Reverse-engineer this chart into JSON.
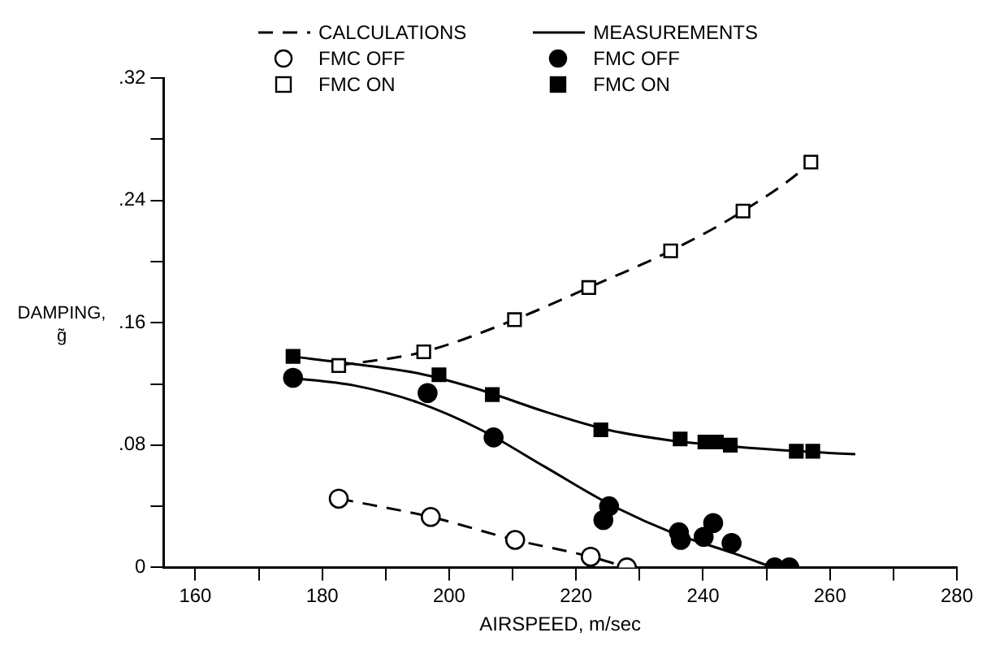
{
  "chart_data": {
    "type": "scatter",
    "xlabel": "AIRSPEED, m/sec",
    "ylabel": "DAMPING, g̃",
    "xlim": [
      155,
      280
    ],
    "xticks": [
      160,
      {
        "value": 170,
        "label": null
      },
      180,
      {
        "value": 190,
        "label": null
      },
      200,
      {
        "value": 210,
        "label": null
      },
      220,
      {
        "value": 230,
        "label": null
      },
      240,
      {
        "value": 250,
        "label": null
      },
      260,
      {
        "value": 270,
        "label": null
      },
      280
    ],
    "ylim": [
      0,
      0.32
    ],
    "yticks": [
      {
        "value": 0,
        "label": "0"
      },
      {
        "value": 0.04,
        "label": null
      },
      {
        "value": 0.08,
        "label": ".08"
      },
      {
        "value": 0.12,
        "label": null
      },
      {
        "value": 0.16,
        "label": ".16"
      },
      {
        "value": 0.2,
        "label": null
      },
      {
        "value": 0.24,
        "label": ".24"
      },
      {
        "value": 0.28,
        "label": null
      },
      {
        "value": 0.32,
        "label": ".32"
      }
    ],
    "grid": false,
    "legend": "top",
    "series": [
      {
        "name": "CALCULATIONS",
        "type": "line",
        "line_style": "dashed",
        "marker": "none",
        "color": "#000000",
        "x": [
          182.6,
          197.1,
          210.4,
          222.3,
          228
        ],
        "values": [
          0.045,
          0.033,
          0.018,
          0.007,
          0
        ]
      },
      {
        "type": "line",
        "line_style": "dashed",
        "marker": "none",
        "color": "#000000",
        "x": [
          182.6,
          196,
          210.3,
          222,
          234.9,
          246.3,
          257,
          258.5
        ],
        "values": [
          0.132,
          0.141,
          0.162,
          0.183,
          0.207,
          0.233,
          0.265,
          0.272
        ]
      },
      {
        "name": "FMC OFF",
        "marker": "circle",
        "color": "#ffffff",
        "x": [
          182.6,
          197.1,
          210.4,
          222.3,
          228
        ],
        "values": [
          0.045,
          0.033,
          0.018,
          0.007,
          0
        ]
      },
      {
        "name": "FMC ON",
        "marker": "square",
        "color": "#ffffff",
        "x": [
          182.6,
          196,
          210.3,
          222,
          234.9,
          246.3,
          257
        ],
        "values": [
          0.132,
          0.141,
          0.162,
          0.183,
          0.207,
          0.233,
          0.265
        ]
      },
      {
        "name": "MEASUREMENTS",
        "type": "line",
        "line_style": "solid",
        "marker": "none",
        "color": "#000000",
        "x": [
          175,
          185,
          195,
          205,
          215,
          225,
          235,
          245,
          251
        ],
        "values": [
          0.124,
          0.119,
          0.108,
          0.09,
          0.066,
          0.042,
          0.023,
          0.009,
          0
        ]
      },
      {
        "type": "line",
        "line_style": "solid",
        "marker": "none",
        "color": "#000000",
        "x": [
          175,
          185,
          195,
          205,
          215,
          225,
          235,
          245,
          255,
          264
        ],
        "values": [
          0.138,
          0.133,
          0.127,
          0.116,
          0.102,
          0.09,
          0.083,
          0.079,
          0.076,
          0.074
        ]
      },
      {
        "name": "FMC OFF",
        "marker": "circle",
        "color": "#000000",
        "x": [
          175.4,
          196.6,
          207,
          225.2,
          224.3,
          236.2,
          236.5,
          240.1,
          241.6,
          244.5,
          251.3,
          253.6
        ],
        "values": [
          0.124,
          0.114,
          0.085,
          0.04,
          0.031,
          0.023,
          0.018,
          0.02,
          0.029,
          0.016,
          0,
          0
        ]
      },
      {
        "name": "FMC ON",
        "marker": "square",
        "color": "#000000",
        "x": [
          175.4,
          198.4,
          206.8,
          223.9,
          236.4,
          240.3,
          242.1,
          244.3,
          254.7,
          257.3
        ],
        "values": [
          0.138,
          0.126,
          0.113,
          0.09,
          0.084,
          0.082,
          0.082,
          0.08,
          0.076,
          0.076
        ]
      }
    ]
  }
}
